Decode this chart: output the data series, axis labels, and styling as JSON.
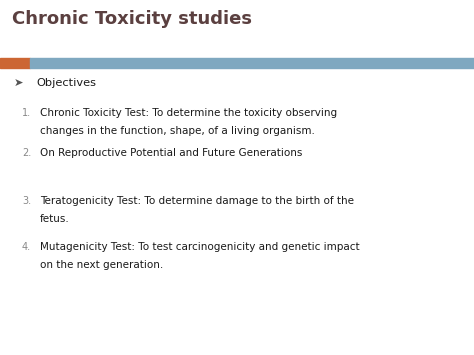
{
  "title": "Chronic Toxicity studies",
  "title_color": "#5B4040",
  "title_fontsize": 13,
  "bg_color": "#FFFFFF",
  "bar_orange_color": "#CC6633",
  "bar_blue_color": "#7FA8C0",
  "bullet_symbol": "➤",
  "bullet_header": "Objectives",
  "bullet_color": "#555555",
  "items": [
    {
      "num": "1.",
      "line1": "Chronic Toxicity Test: To determine the toxicity observing",
      "line2": "changes in the function, shape, of a living organism."
    },
    {
      "num": "2.",
      "line1": "On Reproductive Potential and Future Generations",
      "line2": ""
    },
    {
      "num": "3.",
      "line1": "Teratogenicity Test: To determine damage to the birth of the",
      "line2": "fetus."
    },
    {
      "num": "4.",
      "line1": "Mutagenicity Test: To test carcinogenicity and genetic impact",
      "line2": "on the next generation."
    }
  ],
  "num_color": "#888888",
  "text_color": "#1A1A1A",
  "text_fontsize": 7.5,
  "header_fontsize": 8.2,
  "fig_width": 4.74,
  "fig_height": 3.55,
  "dpi": 100
}
